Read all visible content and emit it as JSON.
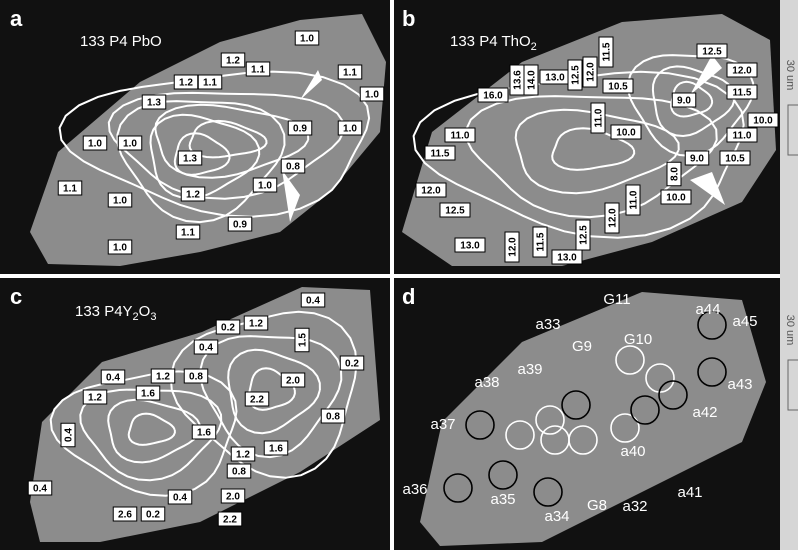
{
  "panels": [
    {
      "letter": "a",
      "title": [
        {
          "text": "133 P4 PbO",
          "sub": false
        }
      ],
      "labels": [
        "1.0",
        "1.1",
        "1.0",
        "1.2",
        "1.1",
        "1.2",
        "1.1",
        "1.3",
        "0.9",
        "1.0",
        "1.0",
        "1.0",
        "1.3",
        "0.8",
        "1.1",
        "1.0",
        "1.2",
        "1.0",
        "1.1",
        "0.9",
        "1.0"
      ]
    },
    {
      "letter": "b",
      "title": [
        {
          "text": "133 P4 ThO",
          "sub": false
        },
        {
          "text": "2",
          "sub": true
        }
      ],
      "labels": [
        "12.5",
        "12.0",
        "11.5",
        "10.5",
        "9.0",
        "10.0",
        "11.0",
        "10.5",
        "9.0",
        "8.0",
        "10.0",
        "16.0",
        "13.6",
        "14.0",
        "13.0",
        "12.5",
        "12.0",
        "11.5",
        "11.0",
        "10.0",
        "11.0",
        "11.5",
        "12.0",
        "12.5",
        "13.0",
        "12.0",
        "11.5",
        "13.0",
        "12.5",
        "12.0",
        "11.0"
      ]
    },
    {
      "letter": "c",
      "title": [
        {
          "text": "133 P4Y",
          "sub": false
        },
        {
          "text": "2",
          "sub": true
        },
        {
          "text": "O",
          "sub": false
        },
        {
          "text": "3",
          "sub": true
        }
      ],
      "labels": [
        "0.4",
        "0.2",
        "1.2",
        "1.5",
        "0.2",
        "0.4",
        "1.2",
        "0.8",
        "0.4",
        "1.6",
        "1.2",
        "2.0",
        "2.2",
        "0.4",
        "1.6",
        "1.2",
        "1.6",
        "0.8",
        "0.8",
        "2.0",
        "0.4",
        "0.4",
        "2.2",
        "2.6",
        "0.2"
      ]
    },
    {
      "letter": "d",
      "title": [],
      "labels": [
        "G11",
        "a44",
        "a45",
        "a33",
        "G10",
        "G9",
        "a39",
        "a38",
        "a43",
        "a42",
        "a37",
        "a40",
        "a36",
        "a35",
        "a41",
        "G8",
        "a32",
        "a34"
      ]
    }
  ],
  "scale": {
    "labels": [
      "30 um",
      "30 um"
    ]
  }
}
